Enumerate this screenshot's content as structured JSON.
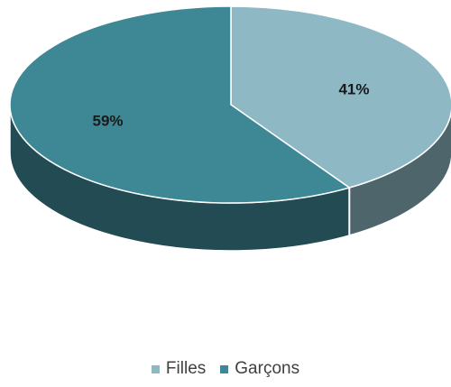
{
  "chart_data": {
    "type": "pie",
    "style": "3d",
    "series": [
      {
        "label": "Filles",
        "value": 41,
        "data_label": "41%",
        "color": "#8db8c4"
      },
      {
        "label": "Garçons",
        "value": 59,
        "data_label": "59%",
        "color": "#3e8896"
      }
    ],
    "legend_position": "bottom"
  }
}
